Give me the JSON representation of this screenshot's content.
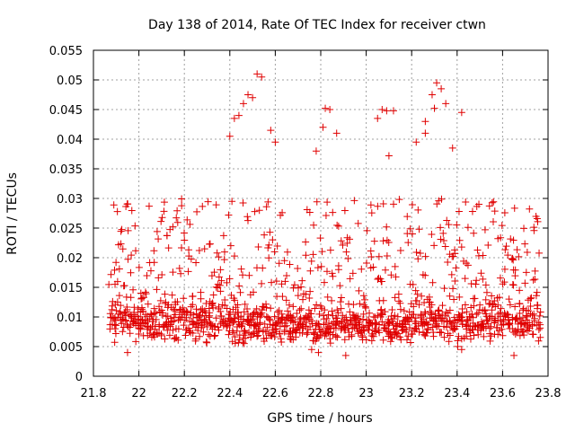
{
  "chart_data": {
    "type": "scatter",
    "title": "Day 138 of 2014, Rate Of TEC Index for receiver ctwn",
    "xlabel": "GPS time / hours",
    "ylabel": "ROTI / TECUs",
    "xlim": [
      21.8,
      23.8
    ],
    "ylim": [
      0,
      0.055
    ],
    "xticks": [
      "21.8",
      "22",
      "22.2",
      "22.4",
      "22.6",
      "22.8",
      "23",
      "23.2",
      "23.4",
      "23.6",
      "23.8"
    ],
    "yticks": [
      "0",
      "0.005",
      "0.01",
      "0.015",
      "0.02",
      "0.025",
      "0.03",
      "0.035",
      "0.04",
      "0.045",
      "0.05",
      "0.055"
    ],
    "grid": true,
    "marker": "+",
    "series": [
      {
        "name": "ROTI",
        "color": "#e00000",
        "x_start": 21.87,
        "x_end": 23.77,
        "approx_point_count": 1400,
        "bands": [
          {
            "name": "core",
            "y_center": [
              0.0095,
              0.0085,
              0.0095
            ],
            "y_spread": 0.003
          },
          {
            "name": "mid",
            "y_range": [
              0.012,
              0.03
            ]
          }
        ],
        "notable_points": [
          {
            "x": 22.52,
            "y": 0.051
          },
          {
            "x": 22.54,
            "y": 0.0505
          },
          {
            "x": 22.48,
            "y": 0.0475
          },
          {
            "x": 22.5,
            "y": 0.047
          },
          {
            "x": 22.46,
            "y": 0.046
          },
          {
            "x": 22.44,
            "y": 0.044
          },
          {
            "x": 22.42,
            "y": 0.0435
          },
          {
            "x": 22.4,
            "y": 0.0405
          },
          {
            "x": 22.58,
            "y": 0.0415
          },
          {
            "x": 22.6,
            "y": 0.0395
          },
          {
            "x": 22.82,
            "y": 0.0452
          },
          {
            "x": 22.84,
            "y": 0.045
          },
          {
            "x": 22.81,
            "y": 0.042
          },
          {
            "x": 22.87,
            "y": 0.041
          },
          {
            "x": 22.78,
            "y": 0.038
          },
          {
            "x": 23.07,
            "y": 0.045
          },
          {
            "x": 23.09,
            "y": 0.0448
          },
          {
            "x": 23.05,
            "y": 0.0435
          },
          {
            "x": 23.12,
            "y": 0.0448
          },
          {
            "x": 23.31,
            "y": 0.0495
          },
          {
            "x": 23.33,
            "y": 0.0485
          },
          {
            "x": 23.29,
            "y": 0.0475
          },
          {
            "x": 23.35,
            "y": 0.046
          },
          {
            "x": 23.3,
            "y": 0.0452
          },
          {
            "x": 23.26,
            "y": 0.043
          },
          {
            "x": 23.42,
            "y": 0.0445
          },
          {
            "x": 23.22,
            "y": 0.0395
          },
          {
            "x": 23.26,
            "y": 0.041
          },
          {
            "x": 23.1,
            "y": 0.0372
          },
          {
            "x": 23.38,
            "y": 0.0385
          },
          {
            "x": 22.91,
            "y": 0.0035
          },
          {
            "x": 22.76,
            "y": 0.0045
          },
          {
            "x": 22.79,
            "y": 0.004
          },
          {
            "x": 23.42,
            "y": 0.0045
          },
          {
            "x": 23.65,
            "y": 0.0035
          },
          {
            "x": 21.95,
            "y": 0.004
          }
        ]
      }
    ]
  }
}
